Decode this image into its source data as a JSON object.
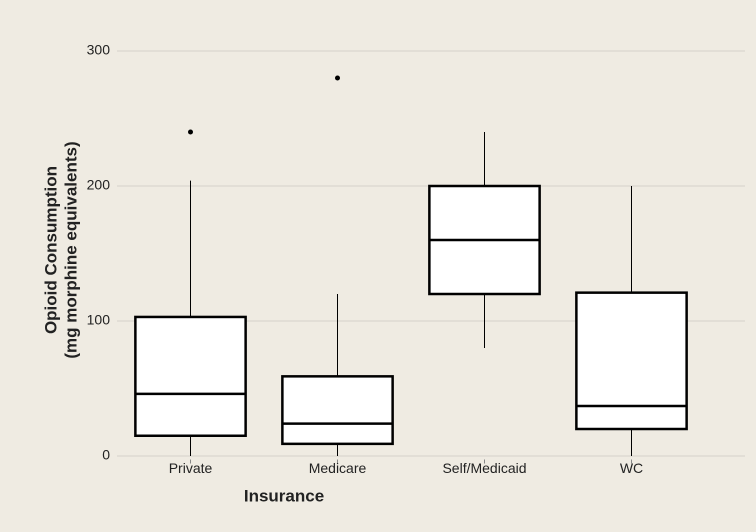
{
  "chart_data": {
    "type": "box",
    "xlabel": "Insurance",
    "ylabel": [
      "Opioid Consumption",
      "(mg morphine equivalents)"
    ],
    "categories": [
      "Private",
      "Medicare",
      "Self/Medicaid",
      "WC"
    ],
    "boxes": [
      {
        "whisker_low": 0,
        "q1": 15,
        "median": 46,
        "q3": 103,
        "whisker_high": 204,
        "outliers": [
          240
        ]
      },
      {
        "whisker_low": 0,
        "q1": 9,
        "median": 24,
        "q3": 59,
        "whisker_high": 120,
        "outliers": [
          280
        ]
      },
      {
        "whisker_low": 80,
        "q1": 120,
        "median": 160,
        "q3": 200,
        "whisker_high": 240,
        "outliers": []
      },
      {
        "whisker_low": 0,
        "q1": 20,
        "median": 37,
        "q3": 121,
        "whisker_high": 200,
        "outliers": []
      }
    ],
    "box_color": "#ffffff",
    "line_color": "#000000",
    "background": "#efebe2",
    "ylim": [
      -10,
      310
    ],
    "yticks": [
      0,
      100,
      200,
      300
    ],
    "grid": true
  }
}
